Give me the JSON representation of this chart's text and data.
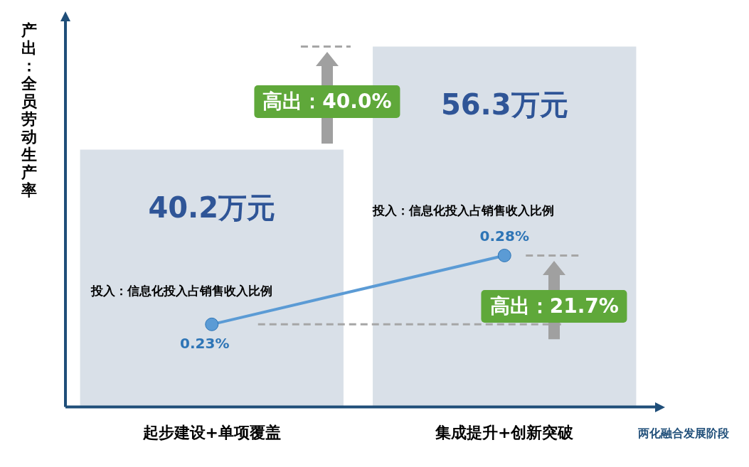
{
  "chart_data": {
    "type": "bar",
    "xlabel": "两化融合发展阶段",
    "ylabel": "产出：全员劳动生产率",
    "categories": [
      "起步建设+单项覆盖",
      "集成提升+创新突破"
    ],
    "series": [
      {
        "type": "bar",
        "color": "#d9e0e8",
        "values": [
          40.2,
          56.3
        ],
        "value_labels": [
          "40.2万元",
          "56.3万元"
        ]
      },
      {
        "type": "line",
        "axis": "y2",
        "color": "#5b9bd5",
        "values": [
          0.23,
          0.28
        ],
        "value_labels": [
          "0.23%",
          "0.28%"
        ]
      }
    ],
    "y2lim": [
      0.17,
      0.45
    ],
    "ref_lines": [
      {
        "axis": "y",
        "value": 56.3,
        "color": "#a6a6a6",
        "line_style": "dashed"
      },
      {
        "axis": "y2",
        "value": 0.23,
        "color": "#a6a6a6",
        "line_style": "dashed"
      },
      {
        "axis": "y2",
        "value": 0.28,
        "color": "#a6a6a6",
        "line_style": "dashed"
      }
    ],
    "annotations": [
      "高出：40.0%",
      "投入：信息化投入占销售收入比例",
      "投入：信息化投入占销售收入比例",
      "高出：21.7%"
    ],
    "marker": "circle",
    "line_style": "solid",
    "legend": false,
    "grid": false
  }
}
